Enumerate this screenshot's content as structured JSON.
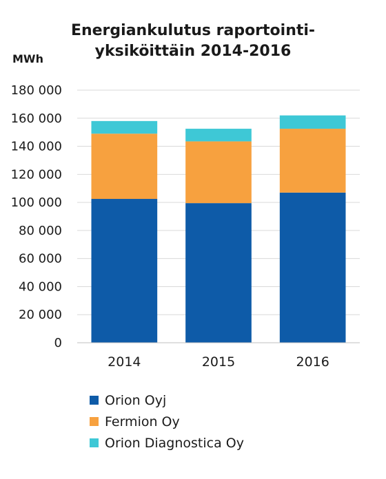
{
  "chart_data": {
    "type": "bar",
    "stacked": true,
    "title_lines": [
      "Energiankulutus raportointi-",
      "yksiköittäin 2014-2016"
    ],
    "ylabel": "MWh",
    "categories": [
      "2014",
      "2015",
      "2016"
    ],
    "ylim": [
      0,
      180000
    ],
    "yticks": [
      0,
      20000,
      40000,
      60000,
      80000,
      100000,
      120000,
      140000,
      160000,
      180000
    ],
    "ytick_labels": [
      "0",
      "20 000",
      "40 000",
      "60 000",
      "80 000",
      "100 000",
      "120 000",
      "140 000",
      "160 000",
      "180 000"
    ],
    "grid": true,
    "legend_position": "bottom",
    "series": [
      {
        "name": "Orion Oyj",
        "values": [
          102500,
          99500,
          107000
        ],
        "color": "#0E5BA8"
      },
      {
        "name": "Fermion Oy",
        "values": [
          46500,
          44000,
          45500
        ],
        "color": "#F7A13F"
      },
      {
        "name": "Orion Diagnostica Oy",
        "values": [
          9000,
          9000,
          9500
        ],
        "color": "#3EC8D6"
      }
    ],
    "gridline_color": "#D9D9D9",
    "axis_color": "#BFBFBF"
  }
}
